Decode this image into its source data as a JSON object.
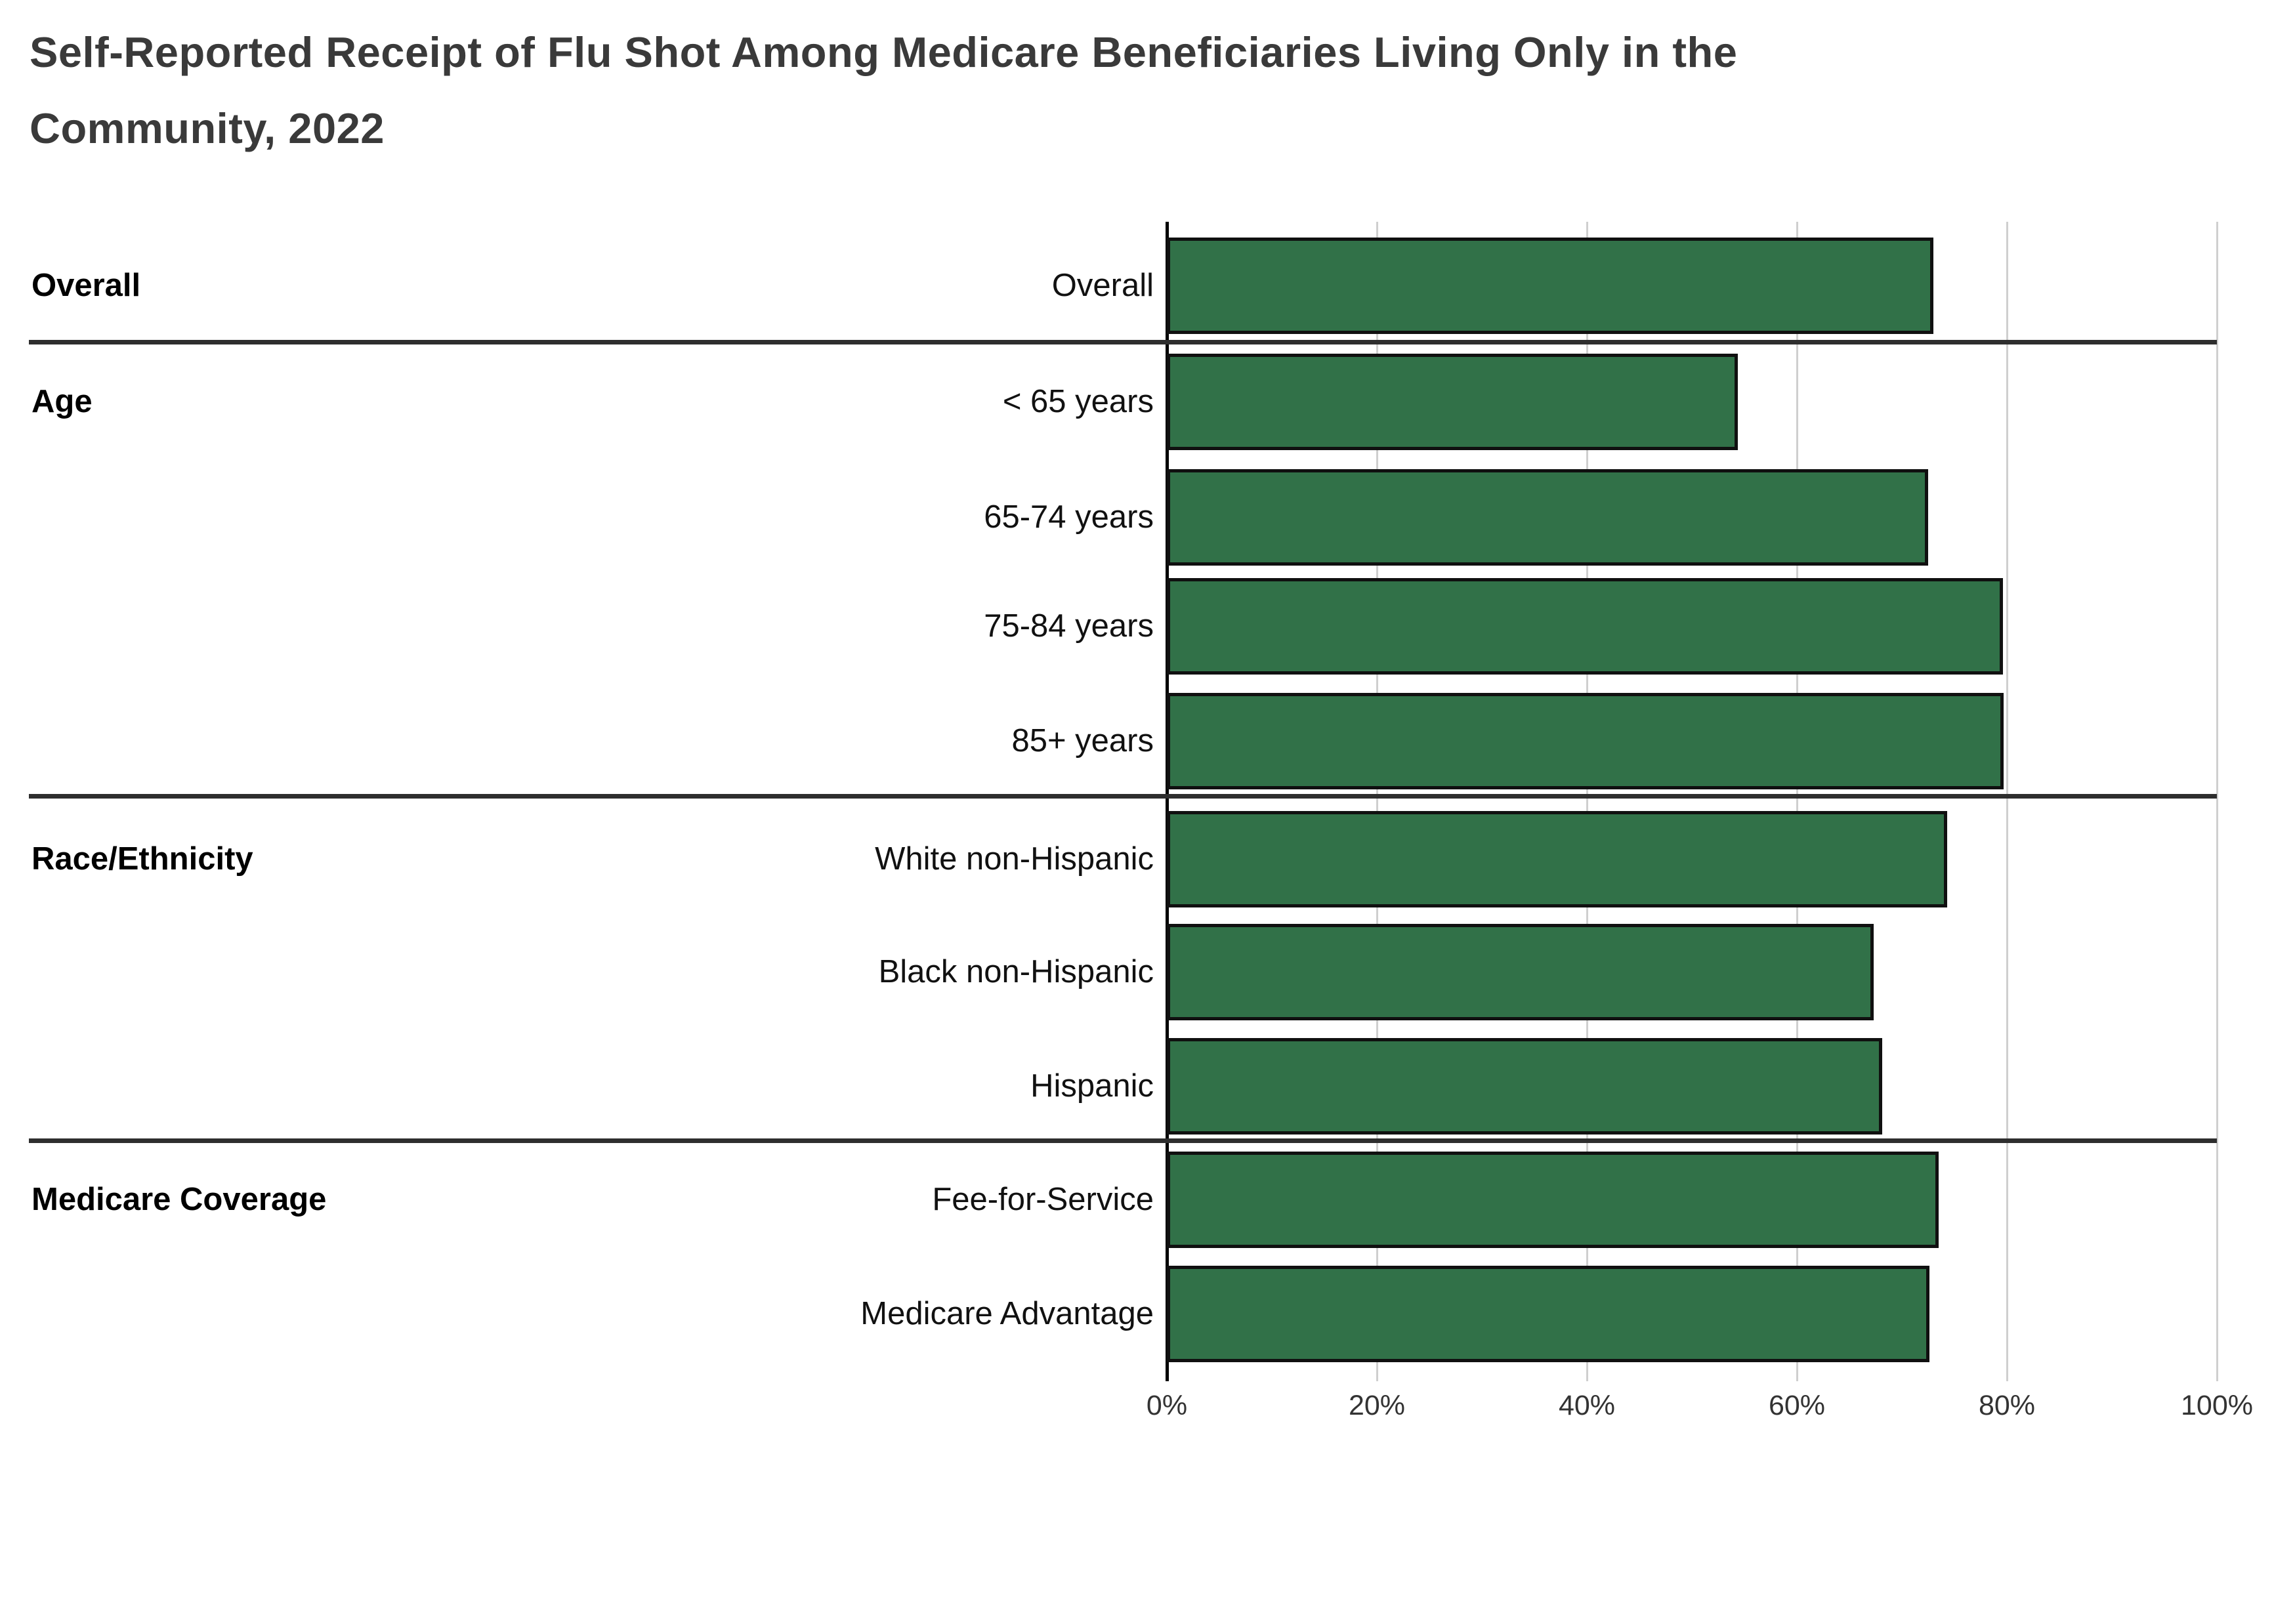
{
  "title": "Self-Reported Receipt of Flu Shot Among Medicare Beneficiaries Living Only in the Community, 2022",
  "title_lines": [
    "Self-Reported Receipt of Flu Shot Among Medicare Beneficiaries Living Only in the",
    "Community, 2022"
  ],
  "chart_data": {
    "type": "bar",
    "orientation": "horizontal",
    "title": "Self-Reported Receipt of Flu Shot Among Medicare Beneficiaries Living Only in the Community, 2022",
    "xlabel": "",
    "ylabel": "",
    "unit": "%",
    "xlim": [
      0,
      100
    ],
    "grid": "vertical-gridlines-on",
    "x_axis_tick_labels": [
      "0%",
      "20%",
      "40%",
      "60%",
      "80%",
      "100%"
    ],
    "x_axis_tick_values": [
      0,
      20,
      40,
      60,
      80,
      100
    ],
    "groups": [
      {
        "label": "Overall",
        "rows": [
          {
            "category": "Overall",
            "value": 73.0
          }
        ]
      },
      {
        "label": "Age",
        "rows": [
          {
            "category": "< 65 years",
            "value": 54.4
          },
          {
            "category": "65-74 years",
            "value": 72.5
          },
          {
            "category": "75-84 years",
            "value": 79.6
          },
          {
            "category": "85+ years",
            "value": 79.7
          }
        ]
      },
      {
        "label": "Race/Ethnicity",
        "rows": [
          {
            "category": "White non-Hispanic",
            "value": 74.3
          },
          {
            "category": "Black non-Hispanic",
            "value": 67.3
          },
          {
            "category": "Hispanic",
            "value": 68.1
          }
        ]
      },
      {
        "label": "Medicare Coverage",
        "rows": [
          {
            "category": "Fee-for-Service",
            "value": 73.5
          },
          {
            "category": "Medicare Advantage",
            "value": 72.6
          }
        ]
      }
    ],
    "colors": {
      "bar_fill": "#317148",
      "bar_border": "#101010",
      "gridline": "#cfcfcf",
      "axis_line": "#000000",
      "group_divider": "#2e2e2e",
      "title_text": "#3a3a3a",
      "label_text": "#111111",
      "tick_text": "#333333"
    }
  }
}
